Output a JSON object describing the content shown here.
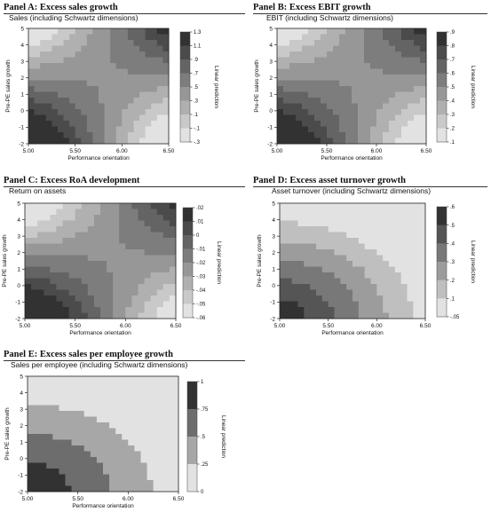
{
  "panel_headers": [
    "Panel A: Excess sales growth",
    "Panel B: Excess EBIT growth",
    "Panel C: Excess RoA development",
    "Panel D: Excess asset turnover growth",
    "Panel E: Excess sales per employee growth"
  ],
  "chart_data": [
    {
      "type": "contour",
      "title": "Sales (including Schwartz dimensions)",
      "xlabel": "Performance orientation",
      "ylabel": "Pre-PE sales growth",
      "xlim": [
        5.0,
        6.5
      ],
      "ylim": [
        -2,
        5
      ],
      "xticks": [
        "5.00",
        "5.50",
        "6.00",
        "6.50"
      ],
      "yticks": [
        "-2",
        "-1",
        "0",
        "1",
        "2",
        "3",
        "4",
        "5"
      ],
      "legend_title": "Linear prediction",
      "legend_labels": [
        "1.3",
        "1.1",
        ".9",
        ".7",
        ".5",
        ".3",
        ".1",
        "-.1",
        "-.3"
      ],
      "model": "saddle",
      "darkest_corner": "bottom-left",
      "lightest_corner": "bottom-right"
    },
    {
      "type": "contour",
      "title": "EBIT (including Schwartz dimensions)",
      "xlabel": "Performance orientation",
      "ylabel": "Pre-PE sales growth",
      "xlim": [
        5.0,
        6.5
      ],
      "ylim": [
        -2,
        5
      ],
      "xticks": [
        "5.00",
        "5.50",
        "6.00",
        "6.50"
      ],
      "yticks": [
        "-2",
        "-1",
        "0",
        "1",
        "2",
        "3",
        "4",
        "5"
      ],
      "legend_title": "Linear prediction",
      "legend_labels": [
        ".9",
        ".8",
        ".7",
        ".6",
        ".5",
        ".4",
        ".3",
        ".2",
        ".1"
      ],
      "model": "saddle",
      "darkest_corner": "bottom-left",
      "lightest_corner": "bottom-right"
    },
    {
      "type": "contour",
      "title": "Return on assets",
      "xlabel": "Performance orientation",
      "ylabel": "Pre-PE sales growth",
      "xlim": [
        5.0,
        6.5
      ],
      "ylim": [
        -2,
        5
      ],
      "xticks": [
        "5.00",
        "5.50",
        "6.00",
        "6.50"
      ],
      "yticks": [
        "-2",
        "-1",
        "0",
        "1",
        "2",
        "3",
        "4",
        "5"
      ],
      "legend_title": "Linear prediction",
      "legend_labels": [
        ".02",
        ".01",
        "0",
        "-.01",
        "-.02",
        "-.03",
        "-.04",
        "-.05",
        "-.06"
      ],
      "model": "saddle",
      "darkest_corner": "bottom-left",
      "lightest_corner": "top-left"
    },
    {
      "type": "contour",
      "title": "Asset turnover (including Schwartz dimensions)",
      "xlabel": "Performance orientation",
      "ylabel": "Pre-PE sales growth",
      "xlim": [
        5.0,
        6.5
      ],
      "ylim": [
        -2,
        5
      ],
      "xticks": [
        "5.00",
        "5.50",
        "6.00",
        "6.50"
      ],
      "yticks": [
        "-2",
        "-1",
        "0",
        "1",
        "2",
        "3",
        "4",
        "5"
      ],
      "legend_title": "Linear prediction",
      "legend_labels": [
        ".6",
        ".5",
        ".4",
        ".3",
        ".2",
        ".1",
        "-.05"
      ],
      "model": "radial",
      "darkest_corner": "bottom-left",
      "lightest_corner": "top-right"
    },
    {
      "type": "contour",
      "title": "Sales per employee (including Schwartz dimensions)",
      "xlabel": "Performance orientation",
      "ylabel": "Pre-PE sales growth",
      "xlim": [
        5.0,
        6.5
      ],
      "ylim": [
        -2,
        5
      ],
      "xticks": [
        "5.00",
        "5.50",
        "6.00",
        "6.50"
      ],
      "yticks": [
        "-2",
        "-1",
        "0",
        "1",
        "2",
        "3",
        "4",
        "5"
      ],
      "legend_title": "Linear prediction",
      "legend_labels": [
        "1",
        ".75",
        ".5",
        ".25",
        "0"
      ],
      "model": "radial",
      "darkest_corner": "bottom-left",
      "lightest_corner": "top-right"
    }
  ]
}
